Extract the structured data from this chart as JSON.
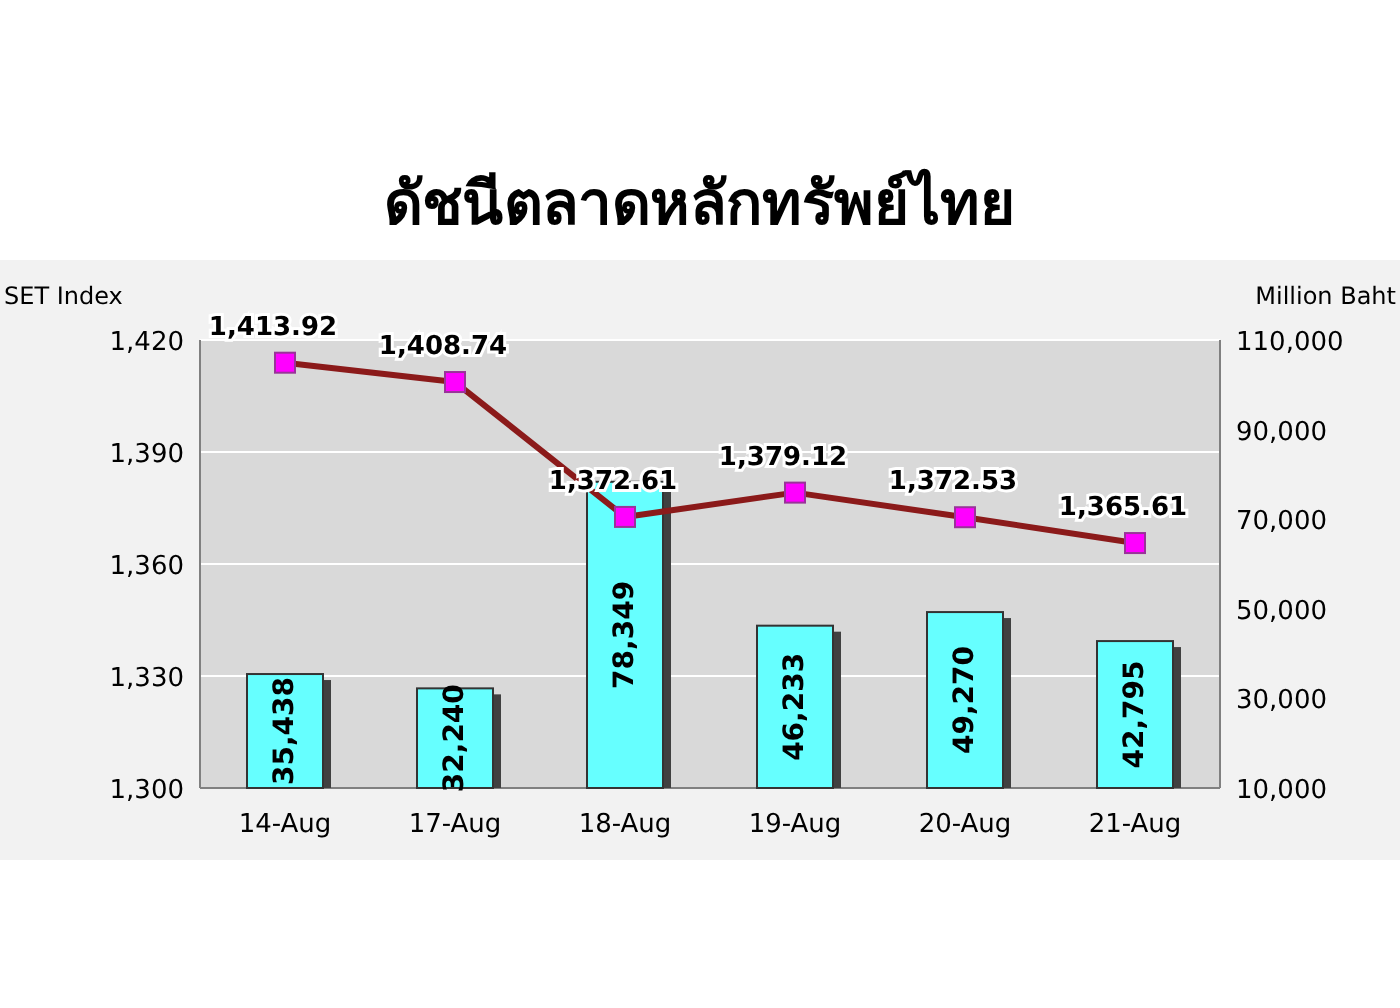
{
  "chart_data": {
    "type": "bar",
    "title": "ดัชนีตลาดหลักทรัพย์ไทย",
    "ylabel": "SET Index",
    "y2label": "Million Baht",
    "categories": [
      "14-Aug",
      "17-Aug",
      "18-Aug",
      "19-Aug",
      "20-Aug",
      "21-Aug"
    ],
    "series": [
      {
        "type": "bar",
        "axis": "y2",
        "color": "#66ffff",
        "values": [
          35438,
          32240,
          78349,
          46233,
          49270,
          42795
        ],
        "value_labels": [
          "35,438",
          "32,240",
          "78,349",
          "46,233",
          "49,270",
          "42,795"
        ]
      },
      {
        "type": "line",
        "color": "#8b1a1a",
        "marker": "square",
        "values": [
          1413.92,
          1408.74,
          1372.61,
          1379.12,
          1372.53,
          1365.61
        ],
        "value_labels": [
          "1,413.92",
          "1,408.74",
          "1,372.61",
          "1,379.12",
          "1,372.53",
          "1,365.61"
        ]
      }
    ],
    "ylim": [
      1300,
      1420
    ],
    "yticks": [
      {
        "value": 1300,
        "label": "1,300"
      },
      {
        "value": 1330,
        "label": "1,330"
      },
      {
        "value": 1360,
        "label": "1,360"
      },
      {
        "value": 1390,
        "label": "1,390"
      },
      {
        "value": 1420,
        "label": "1,420"
      }
    ],
    "y2lim": [
      10000,
      110000
    ],
    "y2ticks": [
      {
        "value": 10000,
        "label": "10,000"
      },
      {
        "value": 30000,
        "label": "30,000"
      },
      {
        "value": 50000,
        "label": "50,000"
      },
      {
        "value": 70000,
        "label": "70,000"
      },
      {
        "value": 90000,
        "label": "90,000"
      },
      {
        "value": 110000,
        "label": "110,000"
      }
    ],
    "grid": "y"
  }
}
